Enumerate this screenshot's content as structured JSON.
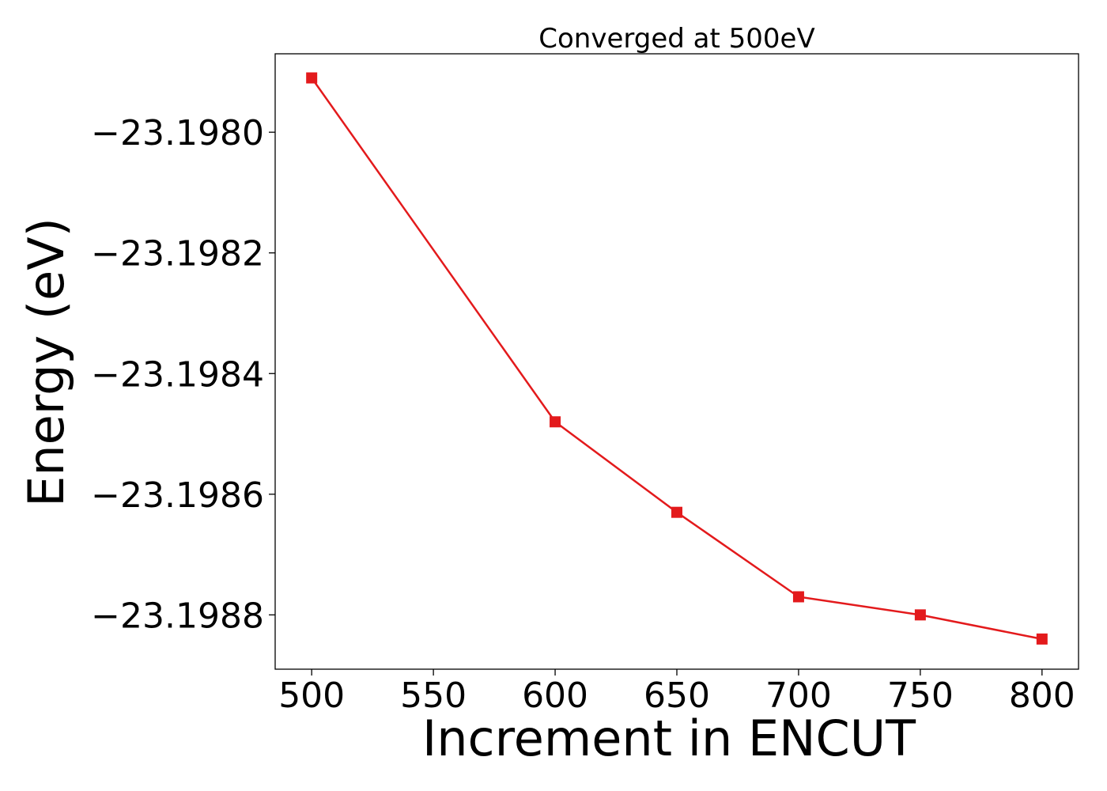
{
  "chart_data": {
    "type": "line",
    "title": "Converged at 500eV",
    "xlabel": "Increment in ENCUT",
    "ylabel": "Energy (eV)",
    "x": [
      500,
      600,
      650,
      700,
      750,
      800
    ],
    "series": [
      {
        "values": [
          -23.19791,
          -23.19848,
          -23.19863,
          -23.19877,
          -23.1988,
          -23.19884
        ],
        "color": "#e31a1c",
        "marker": "square"
      }
    ],
    "xlim": [
      485,
      815
    ],
    "ylim": [
      -23.19889,
      -23.19787
    ],
    "xticks": [
      500,
      550,
      600,
      650,
      700,
      750,
      800
    ],
    "xtick_labels": [
      "500",
      "550",
      "600",
      "650",
      "700",
      "750",
      "800"
    ],
    "yticks": [
      -23.198,
      -23.1982,
      -23.1984,
      -23.1986,
      -23.1988
    ],
    "ytick_labels": [
      "−23.1980",
      "−23.1982",
      "−23.1984",
      "−23.1986",
      "−23.1988"
    ],
    "grid": false,
    "legend": "none"
  }
}
